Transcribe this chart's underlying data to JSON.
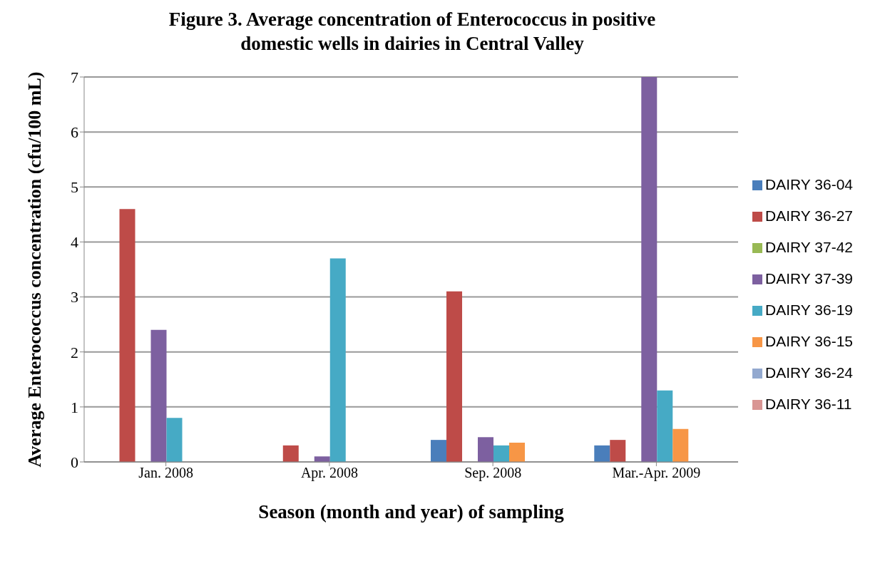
{
  "chart_data": {
    "type": "bar",
    "title": "Figure 3. Average concentration of Enterococcus in positive domestic wells in dairies in Central Valley",
    "xlabel": "Season (month and year) of sampling",
    "ylabel": "Average Enterococcus concentration (cfu/100 mL)",
    "categories": [
      "Jan. 2008",
      "Apr. 2008",
      "Sep. 2008",
      "Mar.-Apr. 2009"
    ],
    "series": [
      {
        "name": "DAIRY 36-04",
        "color": "#4a7ebb",
        "values": [
          null,
          null,
          0.4,
          0.3
        ]
      },
      {
        "name": "DAIRY 36-27",
        "color": "#be4b48",
        "values": [
          4.6,
          0.3,
          3.1,
          0.4
        ]
      },
      {
        "name": "DAIRY 37-42",
        "color": "#98b954",
        "values": [
          null,
          null,
          null,
          null
        ]
      },
      {
        "name": "DAIRY 37-39",
        "color": "#7d60a0",
        "values": [
          2.4,
          0.1,
          0.45,
          7.0
        ]
      },
      {
        "name": "DAIRY 36-19",
        "color": "#46aac5",
        "values": [
          0.8,
          3.7,
          0.3,
          1.3
        ]
      },
      {
        "name": "DAIRY 36-15",
        "color": "#f79646",
        "values": [
          null,
          null,
          0.35,
          0.6
        ]
      },
      {
        "name": "DAIRY 36-24",
        "color": "#93a9cf",
        "values": [
          null,
          null,
          null,
          null
        ]
      },
      {
        "name": "DAIRY 36-11",
        "color": "#d99694",
        "values": [
          null,
          null,
          null,
          null
        ]
      }
    ],
    "ylim": [
      0,
      7
    ],
    "yticks": [
      0,
      1,
      2,
      3,
      4,
      5,
      6,
      7
    ],
    "grid": "y",
    "legend": "right"
  }
}
